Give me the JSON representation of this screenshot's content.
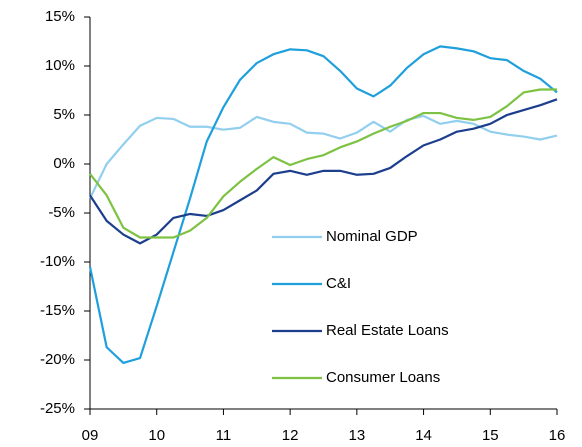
{
  "chart_data": {
    "type": "line",
    "x": [
      9,
      9.25,
      9.5,
      9.75,
      10,
      10.25,
      10.5,
      10.75,
      11,
      11.25,
      11.5,
      11.75,
      12,
      12.25,
      12.5,
      12.75,
      13,
      13.25,
      13.5,
      13.75,
      14,
      14.25,
      14.5,
      14.75,
      15,
      15.25,
      15.5,
      15.75,
      16
    ],
    "series": [
      {
        "name": "Nominal GDP",
        "color": "#92cfee",
        "values": [
          -3.5,
          0,
          2,
          3.9,
          4.7,
          4.6,
          3.8,
          3.8,
          3.5,
          3.7,
          4.8,
          4.3,
          4.1,
          3.2,
          3.1,
          2.6,
          3.2,
          4.3,
          3.3,
          4.5,
          4.9,
          4.1,
          4.4,
          4.1,
          3.3,
          3.0,
          2.8,
          2.5,
          2.9
        ]
      },
      {
        "name": "C&I",
        "color": "#1f9fdc",
        "values": [
          -10.5,
          -18.7,
          -20.3,
          -19.8,
          -14.5,
          -9,
          -3.5,
          2.3,
          5.8,
          8.6,
          10.3,
          11.2,
          11.7,
          11.6,
          11,
          9.5,
          7.7,
          6.9,
          8.0,
          9.8,
          11.2,
          12.0,
          11.8,
          11.5,
          10.8,
          10.6,
          9.5,
          8.7,
          7.3
        ]
      },
      {
        "name": "Real Estate Loans",
        "color": "#1c3e8c",
        "values": [
          -3.2,
          -5.8,
          -7.2,
          -8.1,
          -7.2,
          -5.5,
          -5.1,
          -5.3,
          -4.7,
          -3.7,
          -2.7,
          -1.0,
          -0.7,
          -1.1,
          -0.7,
          -0.7,
          -1.1,
          -1.0,
          -0.4,
          0.8,
          1.9,
          2.5,
          3.3,
          3.6,
          4.1,
          5.0,
          5.5,
          6.0,
          6.6
        ]
      },
      {
        "name": "Consumer Loans",
        "color": "#7dc242",
        "values": [
          -1.0,
          -3.2,
          -6.5,
          -7.5,
          -7.5,
          -7.5,
          -6.8,
          -5.5,
          -3.3,
          -1.8,
          -0.5,
          0.7,
          -0.1,
          0.5,
          0.9,
          1.7,
          2.3,
          3.1,
          3.8,
          4.4,
          5.2,
          5.2,
          4.7,
          4.5,
          4.8,
          5.9,
          7.3,
          7.6,
          7.6
        ]
      }
    ],
    "xlim": [
      9,
      16
    ],
    "xticks": [
      {
        "value": 9,
        "label": "09"
      },
      10,
      11,
      12,
      13,
      14,
      15,
      16
    ],
    "ylim": [
      -25,
      15
    ],
    "yticks": [
      {
        "value": -25,
        "label": "-25%"
      },
      {
        "value": -20,
        "label": "-20%"
      },
      {
        "value": -15,
        "label": "-15%"
      },
      {
        "value": -10,
        "label": "-10%"
      },
      {
        "value": -5,
        "label": "-5%"
      },
      {
        "value": 0,
        "label": "0%"
      },
      {
        "value": 5,
        "label": "5%"
      },
      {
        "value": 10,
        "label": "10%"
      },
      {
        "value": 15,
        "label": "15%"
      }
    ],
    "grid": false,
    "legend": "lower right"
  }
}
